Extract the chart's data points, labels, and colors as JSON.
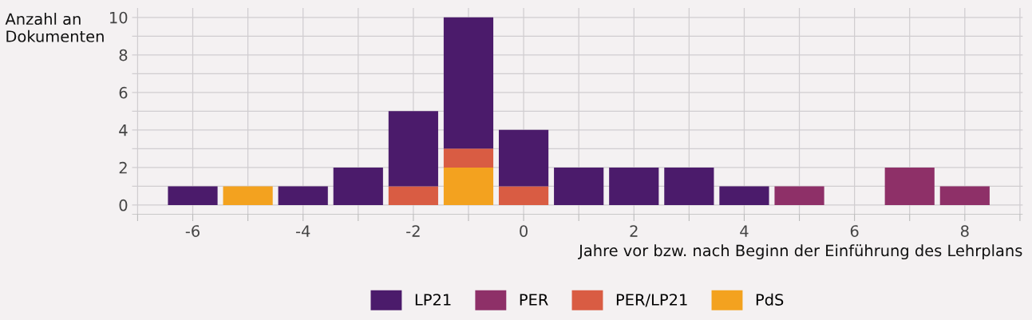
{
  "chart_data": {
    "type": "bar",
    "stacked": true,
    "xlabel": "Jahre vor bzw. nach Beginn der Einführung des Lehrplans",
    "ylabel": "Anzahl an\nDokumenten",
    "x": [
      -6,
      -5,
      -4,
      -3,
      -2,
      -1,
      0,
      1,
      2,
      3,
      4,
      5,
      7,
      8
    ],
    "series": [
      {
        "name": "PdS",
        "color": "#f3a21f",
        "values": [
          null,
          1,
          null,
          null,
          null,
          2,
          null,
          null,
          null,
          null,
          null,
          null,
          null,
          null
        ]
      },
      {
        "name": "PER/LP21",
        "color": "#d95c43",
        "values": [
          null,
          null,
          null,
          null,
          1,
          1,
          1,
          null,
          null,
          null,
          null,
          null,
          null,
          null
        ]
      },
      {
        "name": "PER",
        "color": "#8e3068",
        "values": [
          null,
          null,
          null,
          null,
          null,
          null,
          null,
          null,
          null,
          null,
          null,
          1,
          2,
          1
        ]
      },
      {
        "name": "LP21",
        "color": "#4b1b6b",
        "values": [
          1,
          null,
          1,
          2,
          4,
          7,
          3,
          2,
          2,
          2,
          1,
          null,
          null,
          null
        ]
      }
    ],
    "xlim": [
      -7.1,
      9.05
    ],
    "ylim": [
      -0.5,
      10.5
    ],
    "xticks": [
      {
        "value": -7,
        "label": null
      },
      -6,
      {
        "value": -5,
        "label": null
      },
      -4,
      {
        "value": -3,
        "label": null
      },
      -2,
      {
        "value": -1,
        "label": null
      },
      0,
      {
        "value": 1,
        "label": null
      },
      2,
      {
        "value": 3,
        "label": null
      },
      4,
      {
        "value": 5,
        "label": null
      },
      6,
      {
        "value": 7,
        "label": null
      },
      8,
      {
        "value": 9,
        "label": null
      }
    ],
    "yticks": [
      0,
      {
        "value": 1,
        "label": null
      },
      2,
      {
        "value": 3,
        "label": null
      },
      4,
      {
        "value": 5,
        "label": null
      },
      6,
      {
        "value": 7,
        "label": null
      },
      8,
      {
        "value": 9,
        "label": null
      },
      10
    ],
    "grid": true,
    "legend": "bottom"
  }
}
